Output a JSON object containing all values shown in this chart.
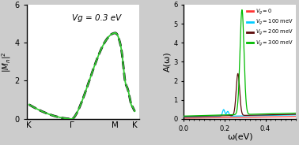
{
  "left_panel": {
    "annotation": "Vg = 0.3 eV",
    "ylabel": "$|M_n|^2$",
    "xtick_labels": [
      "K",
      "Γ",
      "M",
      "K"
    ],
    "ylim": [
      0,
      6
    ],
    "yticks": [
      0,
      2,
      4,
      6
    ],
    "bg_color": "#ffffff"
  },
  "right_panel": {
    "xlabel": "ω(eV)",
    "ylabel": "A(ω)",
    "legend_labels": [
      "Vg = 0",
      "Vg = 100 meV",
      "Vg = 200 meV",
      "Vg = 300 meV"
    ],
    "line_colors": [
      "#ff3333",
      "#00ccff",
      "#5c0a0a",
      "#00bb00"
    ],
    "bg_color": "#ffffff",
    "xlim": [
      0,
      0.55
    ]
  }
}
